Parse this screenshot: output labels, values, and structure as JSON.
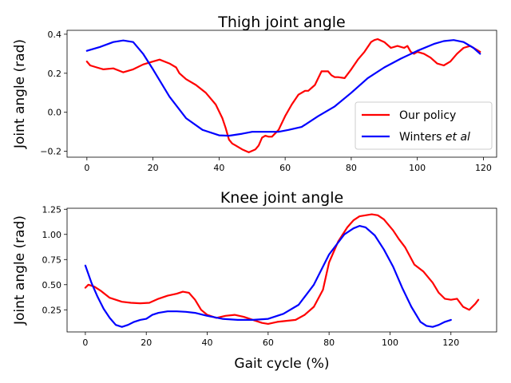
{
  "chart_data": [
    {
      "type": "line",
      "title": "Thigh joint angle",
      "xlabel": "",
      "ylabel": "Joint angle (rad)",
      "xlim": [
        -6,
        124
      ],
      "ylim": [
        -0.23,
        0.42
      ],
      "xticks": [
        0,
        20,
        40,
        60,
        80,
        100,
        120
      ],
      "yticks": [
        -0.2,
        0.0,
        0.2,
        0.4
      ],
      "ytick_labels": [
        "−0.2",
        "0.0",
        "0.2",
        "0.4"
      ],
      "legend": {
        "position": "lower-right",
        "entries": [
          {
            "prefix": "Our policy",
            "italic": "",
            "series": 0
          },
          {
            "prefix": "Winters ",
            "italic": "et al",
            "series": 1
          }
        ]
      },
      "series": [
        {
          "name": "Our policy",
          "color": "#ff0000",
          "x": [
            0,
            1,
            3,
            5,
            8,
            11,
            14,
            17,
            20,
            22,
            25,
            27,
            28,
            30,
            33,
            36,
            39,
            41,
            42,
            43,
            44,
            45,
            47,
            49,
            51,
            52,
            53,
            54,
            55,
            56,
            58,
            60,
            62,
            64,
            66,
            67,
            69,
            71,
            73,
            74,
            75,
            76,
            78,
            80,
            82,
            84,
            86,
            87,
            88,
            90,
            92,
            94,
            96,
            97,
            98,
            99,
            100,
            102,
            104,
            106,
            108,
            110,
            112,
            114,
            116,
            118,
            119
          ],
          "y": [
            0.26,
            0.24,
            0.23,
            0.22,
            0.225,
            0.205,
            0.22,
            0.245,
            0.26,
            0.27,
            0.25,
            0.23,
            0.2,
            0.17,
            0.14,
            0.1,
            0.04,
            -0.03,
            -0.08,
            -0.14,
            -0.16,
            -0.17,
            -0.19,
            -0.205,
            -0.19,
            -0.17,
            -0.13,
            -0.12,
            -0.125,
            -0.125,
            -0.09,
            -0.02,
            0.04,
            0.09,
            0.11,
            0.11,
            0.14,
            0.21,
            0.21,
            0.19,
            0.18,
            0.18,
            0.175,
            0.22,
            0.27,
            0.31,
            0.36,
            0.37,
            0.375,
            0.36,
            0.33,
            0.34,
            0.33,
            0.34,
            0.31,
            0.3,
            0.31,
            0.3,
            0.28,
            0.25,
            0.24,
            0.26,
            0.3,
            0.33,
            0.34,
            0.32,
            0.31
          ]
        },
        {
          "name": "Winters et al",
          "color": "#0000ff",
          "x": [
            0,
            4,
            8,
            11,
            14,
            17,
            20,
            25,
            30,
            35,
            40,
            43,
            47,
            50,
            55,
            58,
            61,
            65,
            70,
            75,
            80,
            85,
            90,
            95,
            100,
            105,
            108,
            111,
            114,
            117,
            119
          ],
          "y": [
            0.315,
            0.335,
            0.36,
            0.368,
            0.36,
            0.3,
            0.22,
            0.08,
            -0.03,
            -0.09,
            -0.118,
            -0.12,
            -0.11,
            -0.1,
            -0.1,
            -0.1,
            -0.09,
            -0.075,
            -0.02,
            0.03,
            0.1,
            0.175,
            0.23,
            0.275,
            0.315,
            0.35,
            0.365,
            0.37,
            0.36,
            0.33,
            0.3
          ]
        }
      ]
    },
    {
      "type": "line",
      "title": "Knee joint angle",
      "xlabel": "Gait cycle (%)",
      "ylabel": "Joint angle (rad)",
      "xlim": [
        -6,
        135
      ],
      "ylim": [
        0.03,
        1.26
      ],
      "xticks": [
        0,
        20,
        40,
        60,
        80,
        100,
        120
      ],
      "yticks": [
        0.25,
        0.5,
        0.75,
        1.0,
        1.25
      ],
      "ytick_labels": [
        "0.25",
        "0.50",
        "0.75",
        "1.00",
        "1.25"
      ],
      "series": [
        {
          "name": "Our policy",
          "color": "#ff0000",
          "x": [
            0,
            1,
            3,
            5,
            8,
            12,
            15,
            18,
            21,
            24,
            27,
            30,
            32,
            34,
            36,
            38,
            40,
            43,
            46,
            49,
            52,
            55,
            58,
            60,
            63,
            66,
            69,
            72,
            75,
            78,
            80,
            83,
            86,
            88,
            90,
            92,
            94,
            96,
            98,
            101,
            103,
            105,
            108,
            111,
            114,
            116,
            118,
            120,
            122,
            124,
            126,
            128,
            129
          ],
          "y": [
            0.47,
            0.5,
            0.48,
            0.44,
            0.37,
            0.33,
            0.32,
            0.315,
            0.32,
            0.36,
            0.39,
            0.41,
            0.43,
            0.42,
            0.35,
            0.25,
            0.2,
            0.17,
            0.19,
            0.2,
            0.18,
            0.15,
            0.12,
            0.11,
            0.13,
            0.14,
            0.15,
            0.2,
            0.28,
            0.45,
            0.72,
            0.93,
            1.07,
            1.14,
            1.18,
            1.19,
            1.2,
            1.19,
            1.15,
            1.04,
            0.95,
            0.87,
            0.7,
            0.63,
            0.52,
            0.42,
            0.36,
            0.35,
            0.36,
            0.28,
            0.25,
            0.31,
            0.35
          ]
        },
        {
          "name": "Winters et al",
          "color": "#0000ff",
          "x": [
            0,
            2,
            4,
            6,
            8,
            10,
            12,
            14,
            16,
            18,
            20,
            22,
            24,
            27,
            30,
            33,
            36,
            40,
            45,
            50,
            55,
            60,
            65,
            70,
            75,
            80,
            85,
            88,
            90,
            92,
            95,
            98,
            101,
            104,
            107,
            110,
            112,
            114,
            116,
            118,
            120
          ],
          "y": [
            0.69,
            0.52,
            0.38,
            0.26,
            0.17,
            0.1,
            0.08,
            0.1,
            0.13,
            0.15,
            0.16,
            0.2,
            0.22,
            0.235,
            0.235,
            0.23,
            0.22,
            0.19,
            0.16,
            0.15,
            0.15,
            0.16,
            0.21,
            0.3,
            0.5,
            0.8,
            1.0,
            1.06,
            1.085,
            1.07,
            0.99,
            0.85,
            0.68,
            0.47,
            0.28,
            0.13,
            0.09,
            0.08,
            0.1,
            0.13,
            0.15
          ]
        }
      ]
    }
  ]
}
